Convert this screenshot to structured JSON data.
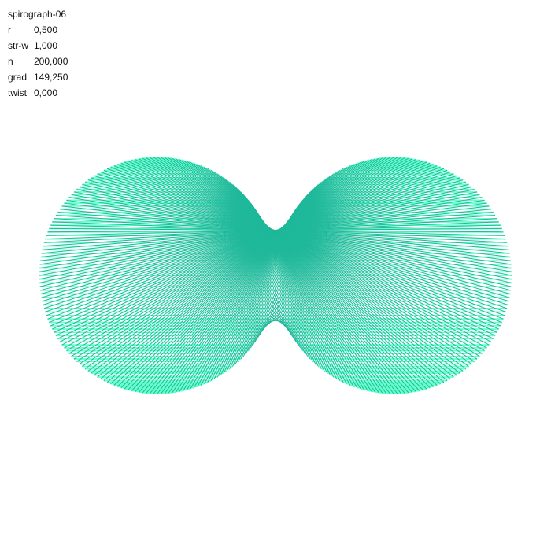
{
  "title": "spirograph-06",
  "params": [
    {
      "key": "r",
      "value": "0,500"
    },
    {
      "key": "str-w",
      "value": "1,000"
    },
    {
      "key": "n",
      "value": "200,000"
    },
    {
      "key": "grad",
      "value": "149,250"
    },
    {
      "key": "twist",
      "value": "0,000"
    }
  ],
  "colors": {
    "background": "#ffffff",
    "stroke_light": "#66ffcc",
    "stroke_dark": "#1fb89a",
    "text": "#111111"
  }
}
